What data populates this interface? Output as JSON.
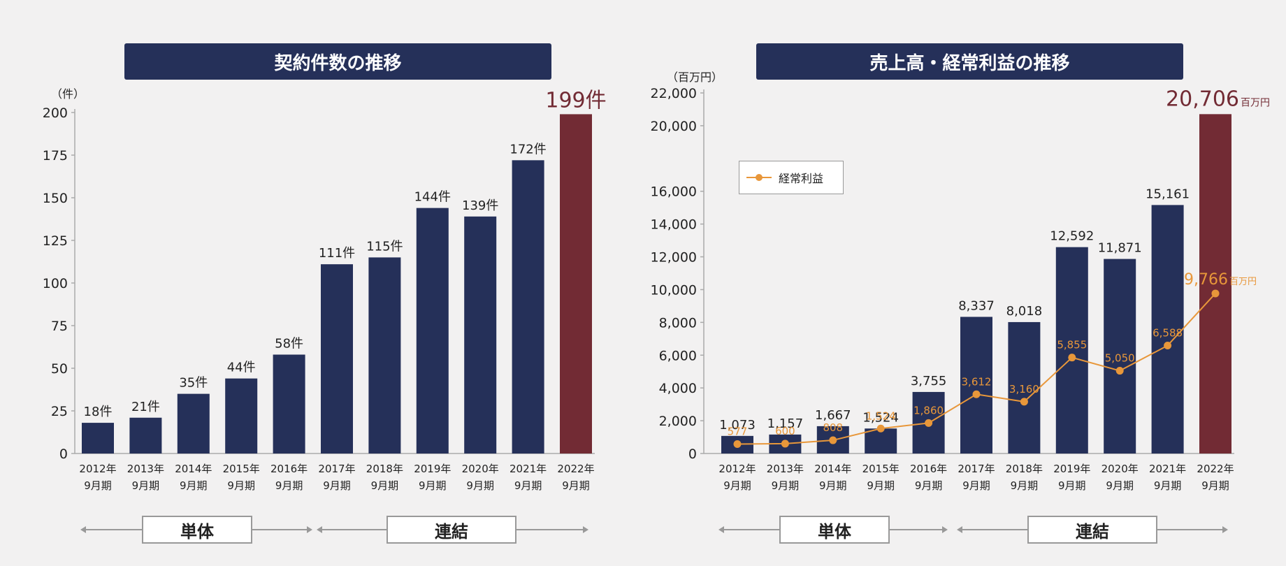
{
  "chart_data": [
    {
      "type": "bar",
      "title": "契約件数の推移",
      "ylabel": "（件）",
      "ylim": [
        0,
        200
      ],
      "yticks": [
        "0",
        "25",
        "50",
        "75",
        "100",
        "125",
        "150",
        "175",
        "200"
      ],
      "categories": [
        "2012年 9月期",
        "2013年 9月期",
        "2014年 9月期",
        "2015年 9月期",
        "2016年 9月期",
        "2017年 9月期",
        "2018年 9月期",
        "2019年 9月期",
        "2020年 9月期",
        "2021年 9月期",
        "2022年 9月期"
      ],
      "values": [
        18,
        21,
        35,
        44,
        58,
        111,
        115,
        144,
        139,
        172,
        199
      ],
      "value_labels": [
        "18件",
        "21件",
        "35件",
        "44件",
        "58件",
        "111件",
        "115件",
        "144件",
        "139件",
        "172件",
        "199件"
      ],
      "bar_color": "#253059",
      "highlight_color": "#722b34"
    },
    {
      "type": "bar",
      "title": "売上高・経常利益の推移",
      "ylabel": "（百万円）",
      "ylim": [
        0,
        22000
      ],
      "yticks": [
        "0",
        "2,000",
        "4,000",
        "6,000",
        "8,000",
        "10,000",
        "12,000",
        "14,000",
        "16,000",
        "20,000",
        "22,000"
      ],
      "categories": [
        "2012年 9月期",
        "2013年 9月期",
        "2014年 9月期",
        "2015年 9月期",
        "2016年 9月期",
        "2017年 9月期",
        "2018年 9月期",
        "2019年 9月期",
        "2020年 9月期",
        "2021年 9月期",
        "2022年 9月期"
      ],
      "series": [
        {
          "name": "売上高",
          "type": "bar",
          "values": [
            1073,
            1157,
            1667,
            1524,
            3755,
            8337,
            8018,
            12592,
            11871,
            15161,
            20706
          ],
          "labels": [
            "1,073",
            "1,157",
            "1,667",
            "1,524",
            "3,755",
            "8,337",
            "8,018",
            "12,592",
            "11,871",
            "15,161",
            "20,706"
          ],
          "last_unit": "百万円"
        },
        {
          "name": "経常利益",
          "type": "line",
          "values": [
            577,
            600,
            808,
            1524,
            1860,
            3612,
            3160,
            5855,
            5050,
            6588,
            9766
          ],
          "labels": [
            "577",
            "600",
            "808",
            "1,524",
            "1,860",
            "3,612",
            "3,160",
            "5,855",
            "5,050",
            "6,588",
            "9,766"
          ],
          "last_unit": "百万円",
          "color": "#e8973a"
        }
      ],
      "legend": "経常利益",
      "bar_color": "#253059",
      "highlight_color": "#722b34"
    }
  ],
  "segments": {
    "single": "単体",
    "consolidated": "連結"
  }
}
